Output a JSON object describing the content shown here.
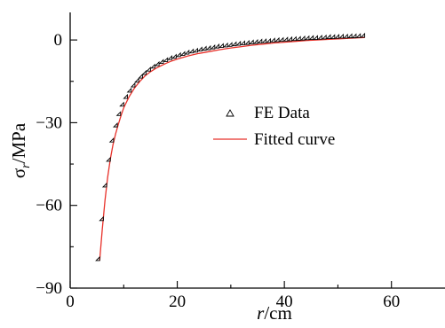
{
  "chart_data": {
    "type": "scatter",
    "title": "",
    "xlabel": {
      "italic": "r",
      "rest": "/cm"
    },
    "ylabel": {
      "base": "σ",
      "sub": "r",
      "rest": "/MPa"
    },
    "xlim": [
      0,
      70
    ],
    "ylim": [
      -90,
      10
    ],
    "x_major_ticks": [
      0,
      20,
      40,
      60
    ],
    "x_tick_labels": [
      "0",
      "20",
      "40",
      "60"
    ],
    "x_minor_ticks": [
      10,
      30,
      50
    ],
    "y_major_ticks": [
      0,
      -30,
      -60,
      -90
    ],
    "y_tick_labels": [
      "0",
      "−30",
      "−60",
      "−90"
    ],
    "y_minor_ticks": [
      -15,
      -45,
      -75
    ],
    "grid": false,
    "legend_position": "center-right",
    "series": [
      {
        "name": "FE Data",
        "kind": "marker",
        "marker": "triangle-open",
        "color": "#000000",
        "x": [
          5.5,
          6.2,
          6.8,
          7.5,
          8.1,
          8.8,
          9.4,
          10.0,
          10.7,
          11.4,
          12.1,
          12.8,
          13.5,
          14.2,
          15.0,
          15.8,
          16.6,
          17.4,
          18.2,
          19.0,
          19.8,
          20.6,
          21.4,
          22.2,
          23.0,
          23.8,
          24.6,
          25.4,
          26.2,
          27.0,
          27.8,
          28.6,
          29.4,
          30.2,
          31.0,
          31.8,
          32.6,
          33.4,
          34.2,
          35.0,
          35.8,
          36.6,
          37.4,
          38.2,
          39.0,
          39.8,
          40.6,
          41.4,
          42.2,
          43.0,
          43.8,
          44.6,
          45.4,
          46.2,
          47.0,
          47.8,
          48.6,
          49.4,
          50.2,
          51.0,
          51.8,
          52.6,
          53.4,
          54.2,
          55.0
        ],
        "y": [
          -80.0,
          -65.5,
          -53.3,
          -44.0,
          -37.0,
          -31.5,
          -27.4,
          -24.0,
          -21.2,
          -18.9,
          -17.0,
          -15.3,
          -13.8,
          -12.5,
          -11.3,
          -10.2,
          -9.3,
          -8.5,
          -7.8,
          -7.1,
          -6.6,
          -6.0,
          -5.6,
          -5.1,
          -4.7,
          -4.4,
          -4.0,
          -3.7,
          -3.5,
          -3.2,
          -2.9,
          -2.7,
          -2.5,
          -2.3,
          -2.1,
          -1.9,
          -1.7,
          -1.6,
          -1.4,
          -1.3,
          -1.1,
          -1.0,
          -0.9,
          -0.7,
          -0.6,
          -0.5,
          -0.4,
          -0.3,
          -0.2,
          -0.1,
          0.0,
          0.1,
          0.2,
          0.2,
          0.3,
          0.4,
          0.5,
          0.5,
          0.6,
          0.7,
          0.7,
          0.8,
          0.8,
          0.9,
          1.0
        ]
      },
      {
        "name": "Fitted curve",
        "kind": "line",
        "color": "#e8312a",
        "x": [
          5.5,
          6.0,
          6.5,
          7.0,
          7.5,
          8.0,
          8.5,
          9.0,
          9.5,
          10.0,
          11.0,
          12.0,
          13.0,
          14.0,
          15.0,
          16.0,
          17.0,
          18.0,
          19.0,
          20.0,
          22.0,
          24.0,
          26.0,
          28.0,
          30.0,
          32.0,
          34.0,
          36.0,
          38.0,
          40.0,
          42.0,
          44.0,
          46.0,
          48.0,
          50.0,
          52.0,
          54.0,
          55.0
        ],
        "y": [
          -80.0,
          -68.5,
          -58.2,
          -49.8,
          -43.2,
          -38.0,
          -34.0,
          -30.5,
          -27.4,
          -24.6,
          -20.6,
          -17.5,
          -15.0,
          -13.0,
          -11.5,
          -10.3,
          -9.3,
          -8.4,
          -7.6,
          -6.9,
          -5.8,
          -4.9,
          -4.2,
          -3.5,
          -2.9,
          -2.4,
          -1.9,
          -1.5,
          -1.1,
          -0.8,
          -0.5,
          -0.2,
          0.0,
          0.2,
          0.4,
          0.6,
          0.8,
          0.9
        ]
      }
    ]
  }
}
